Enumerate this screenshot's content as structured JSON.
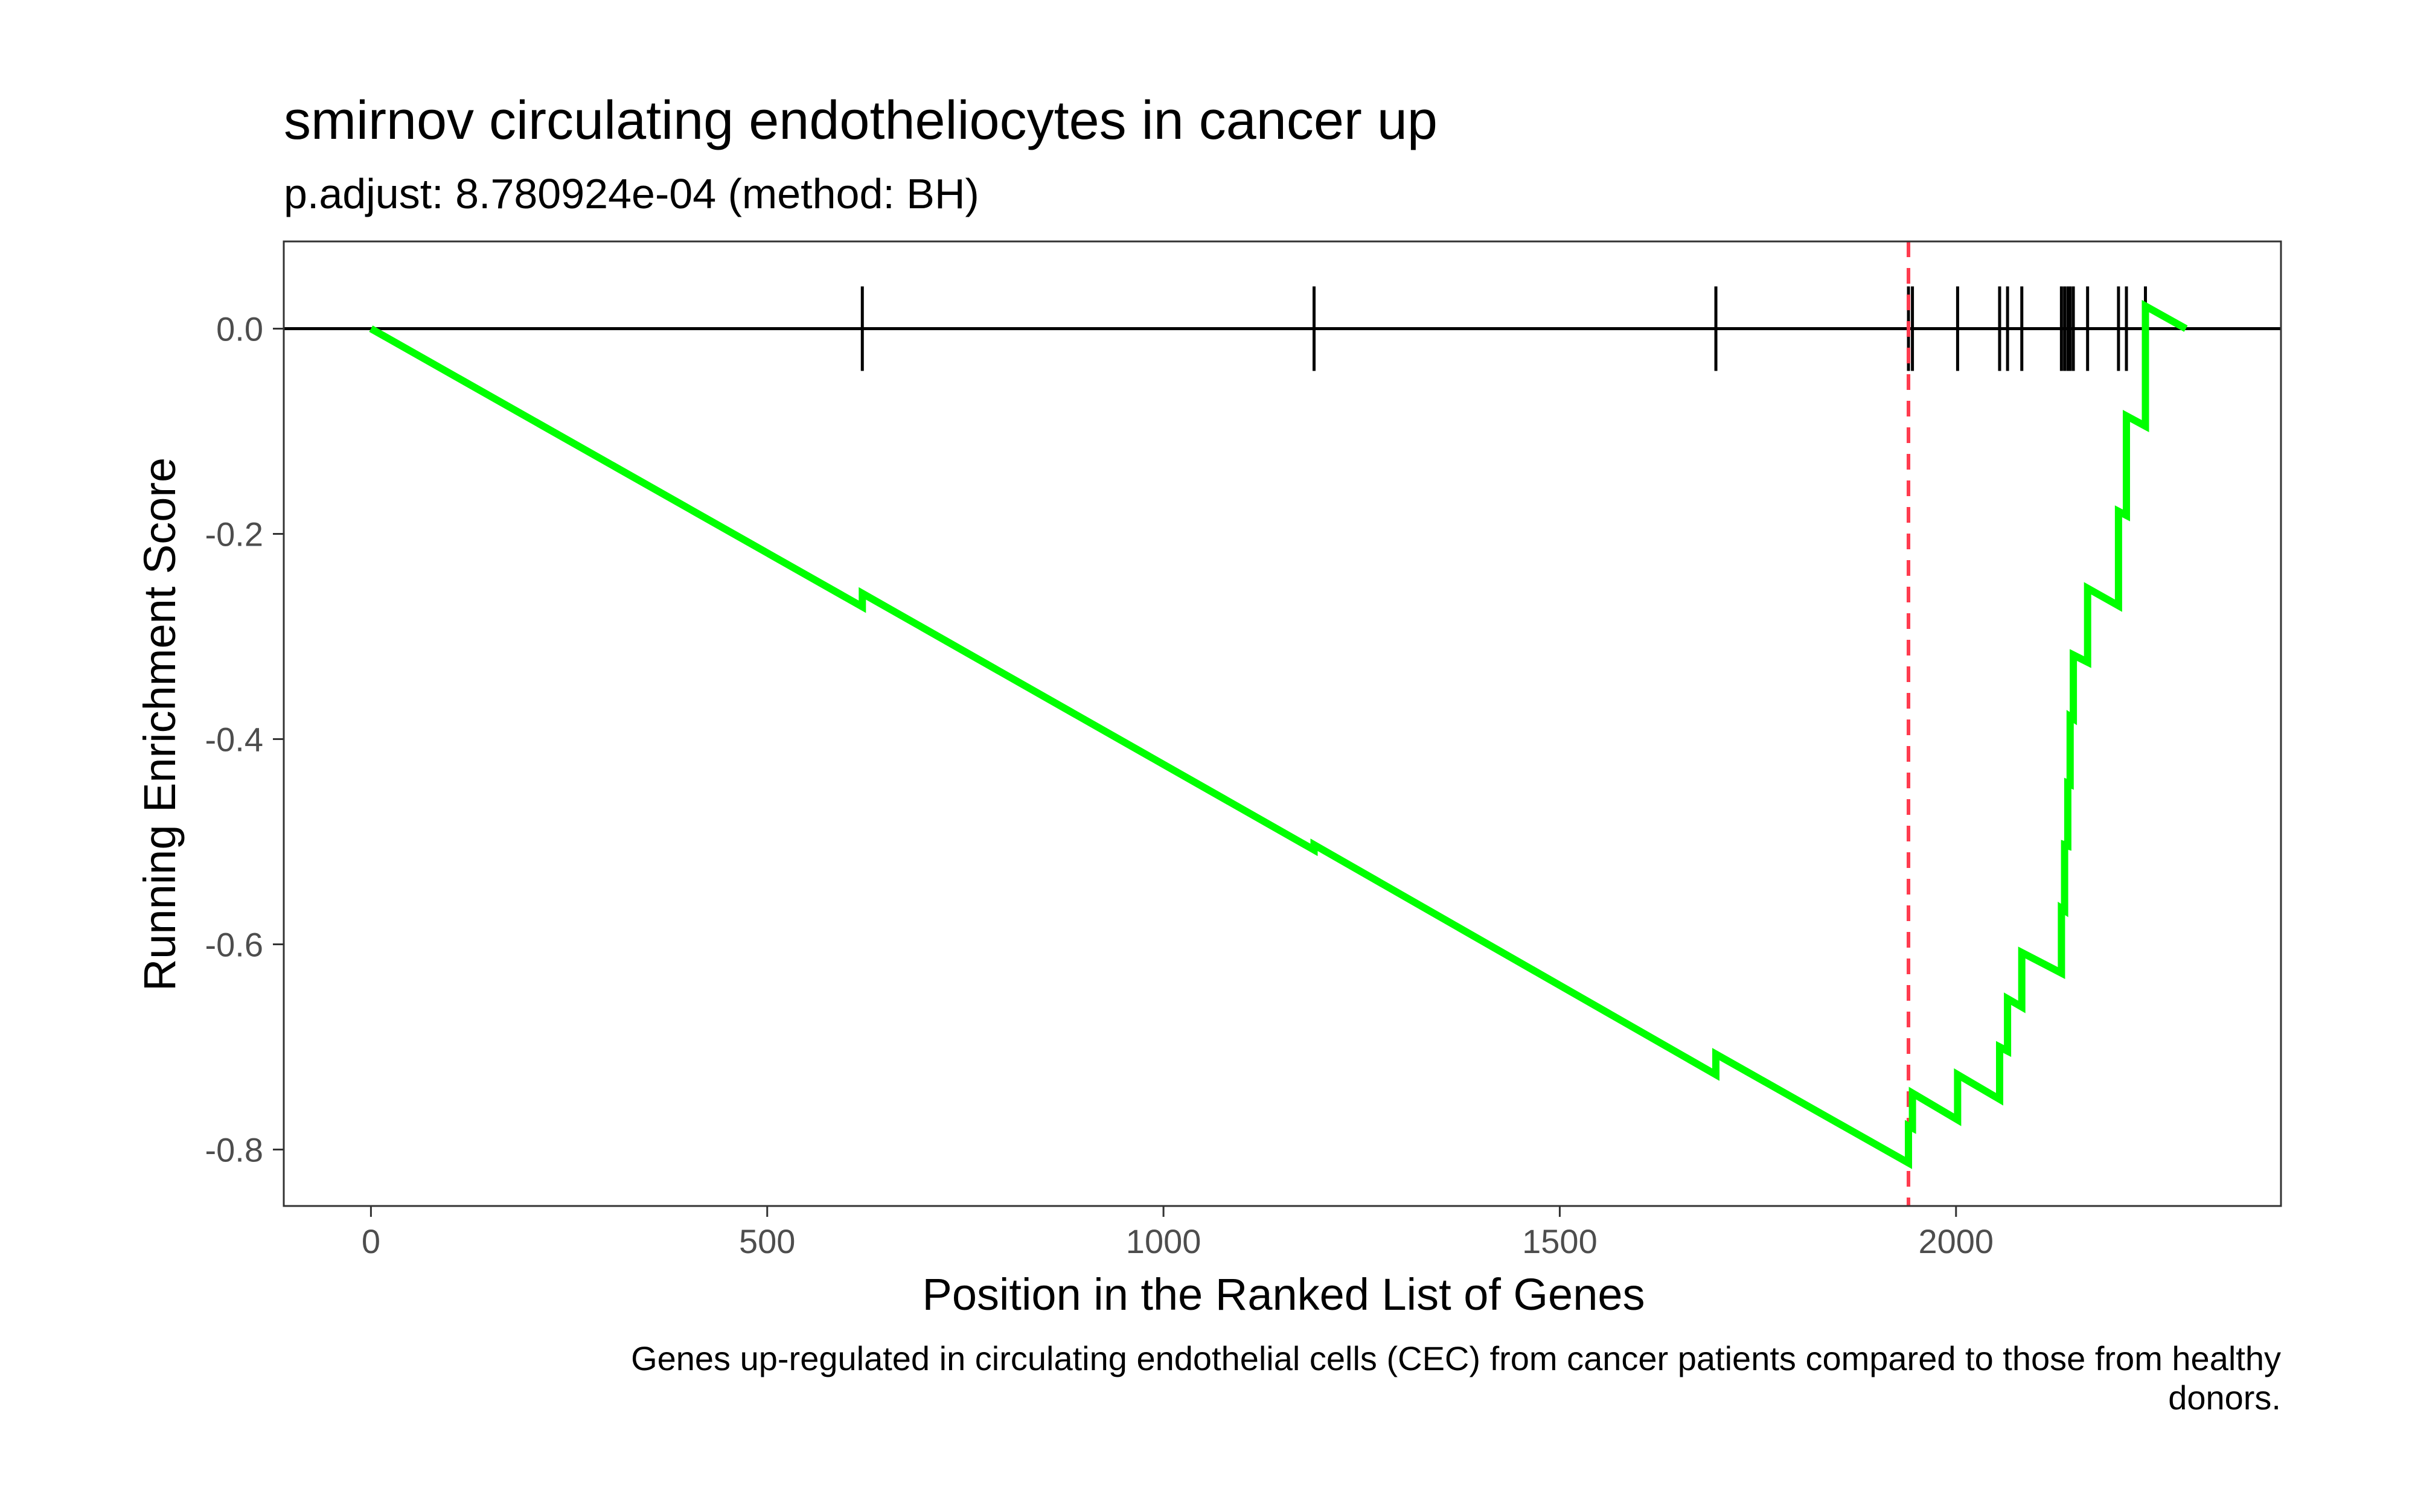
{
  "chart_data": {
    "type": "line",
    "title": "smirnov circulating endotheliocytes in cancer up",
    "subtitle": "p.adjust: 8.780924e-04 (method: BH)",
    "xlabel": "Position in the Ranked List of Genes",
    "ylabel": "Running Enrichment Score",
    "caption_lines": [
      "Genes up-regulated in circulating endothelial cells (CEC) from cancer patients compared to those from healthy",
      "donors."
    ],
    "xlim": [
      -110,
      2410
    ],
    "ylim": [
      -0.855,
      0.085
    ],
    "x_ticks": [
      0,
      500,
      1000,
      1500,
      2000
    ],
    "x_tick_labels": [
      "0",
      "500",
      "1000",
      "1500",
      "2000"
    ],
    "y_ticks": [
      0.0,
      -0.2,
      -0.4,
      -0.6,
      -0.8
    ],
    "y_tick_labels": [
      "0.0",
      "-0.2",
      "-0.4",
      "-0.6",
      "-0.8"
    ],
    "grid": false,
    "legend": "none",
    "zero_line": 0.0,
    "max_deviation_x": 1940,
    "hit_positions": [
      620,
      1190,
      1697,
      1940,
      1945,
      2002,
      2055,
      2065,
      2083,
      2133,
      2137,
      2141,
      2144,
      2148,
      2166,
      2205,
      2215,
      2239
    ],
    "series": [
      {
        "x": [
          0,
          620,
          620,
          1190,
          1190,
          1697,
          1697,
          1940,
          1940,
          1945,
          1945,
          2002,
          2002,
          2055,
          2055,
          2065,
          2065,
          2083,
          2083,
          2133,
          2133,
          2137,
          2137,
          2141,
          2141,
          2144,
          2144,
          2148,
          2148,
          2166,
          2166,
          2205,
          2205,
          2215,
          2215,
          2239,
          2239,
          2290
        ],
        "y": [
          0.0,
          -0.271,
          -0.258,
          -0.508,
          -0.503,
          -0.727,
          -0.707,
          -0.813,
          -0.777,
          -0.779,
          -0.745,
          -0.771,
          -0.727,
          -0.751,
          -0.7,
          -0.704,
          -0.653,
          -0.661,
          -0.608,
          -0.628,
          -0.565,
          -0.567,
          -0.503,
          -0.504,
          -0.443,
          -0.444,
          -0.378,
          -0.38,
          -0.318,
          -0.325,
          -0.253,
          -0.27,
          -0.178,
          -0.182,
          -0.085,
          -0.095,
          0.022,
          0.0
        ],
        "color": "#00ff00"
      }
    ],
    "colors": {
      "curve": "#00ff00",
      "max_line": "#ff3b4e",
      "hits": "#000000",
      "zero_line": "#000000",
      "panel_border": "#333333",
      "tick_text": "#4d4d4d"
    }
  }
}
